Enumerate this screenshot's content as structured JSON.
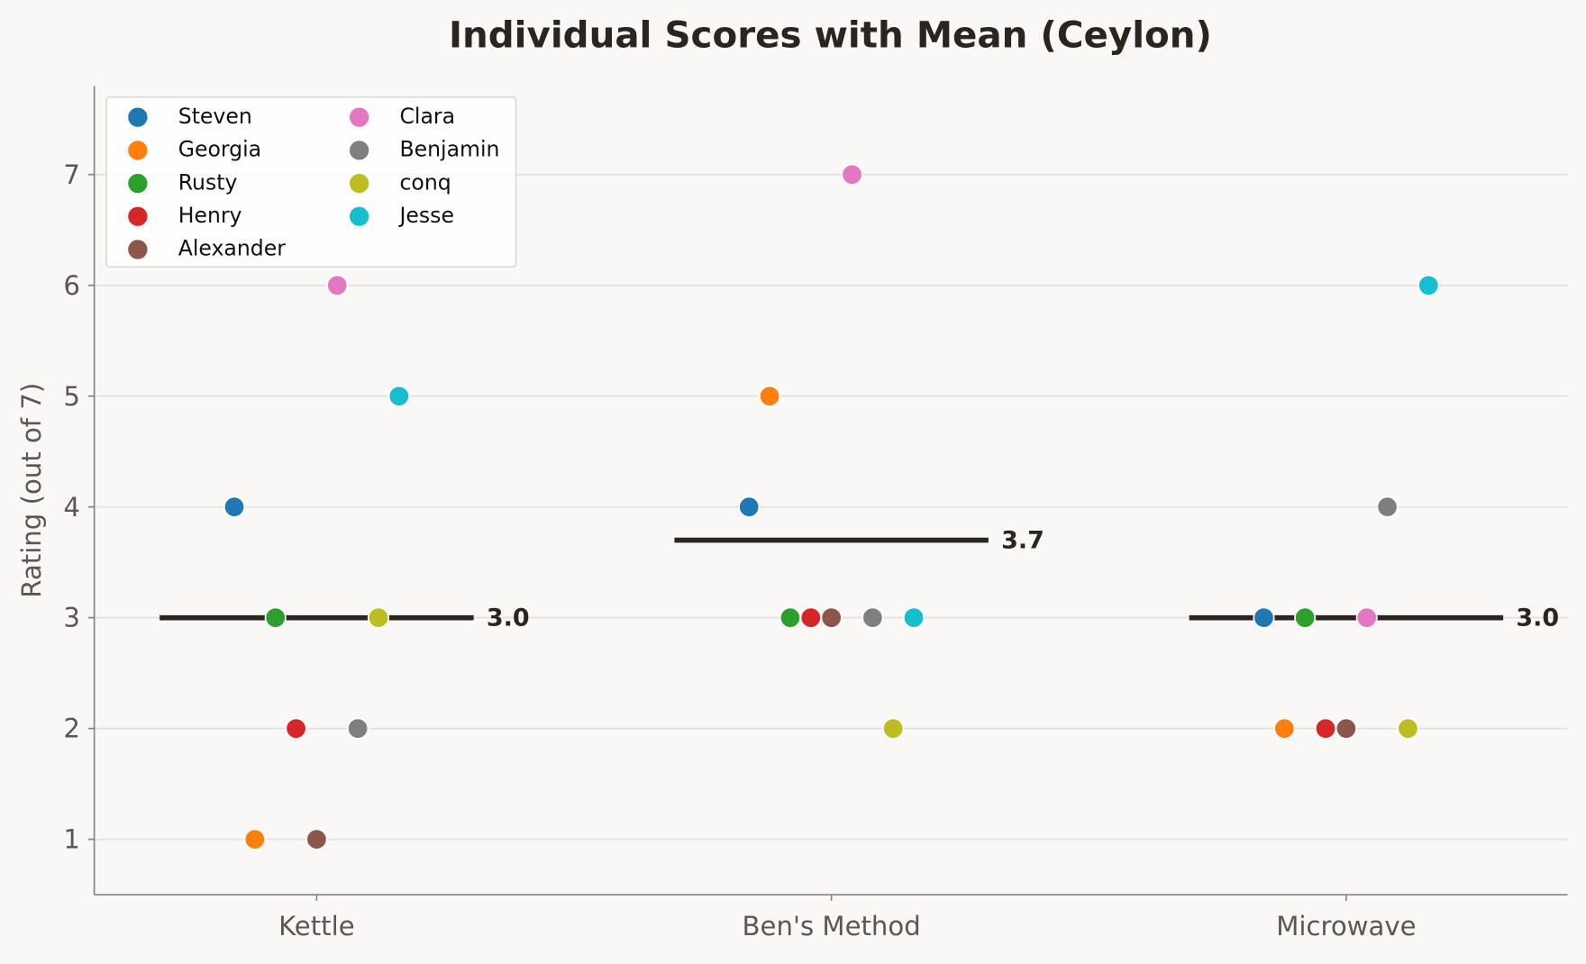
{
  "chart_data": {
    "type": "scatter",
    "title": "Individual Scores with Mean (Ceylon)",
    "xlabel": "",
    "ylabel": "Rating (out of 7)",
    "categories": [
      "Kettle",
      "Ben's Method",
      "Microwave"
    ],
    "ylim": [
      0.5,
      7.8
    ],
    "yticks": [
      1,
      2,
      3,
      4,
      5,
      6,
      7
    ],
    "grid": "horizontal",
    "legend_placement": "top-left",
    "series": [
      {
        "name": "Steven",
        "color": "#1f77b4",
        "values": [
          4,
          4,
          3
        ]
      },
      {
        "name": "Georgia",
        "color": "#ff7f0e",
        "values": [
          1,
          5,
          2
        ]
      },
      {
        "name": "Rusty",
        "color": "#2ca02c",
        "values": [
          3,
          3,
          3
        ]
      },
      {
        "name": "Henry",
        "color": "#d62728",
        "values": [
          2,
          3,
          2
        ]
      },
      {
        "name": "Alexander",
        "color": "#8c564b",
        "values": [
          1,
          3,
          2
        ]
      },
      {
        "name": "Clara",
        "color": "#e377c2",
        "values": [
          6,
          7,
          3
        ]
      },
      {
        "name": "Benjamin",
        "color": "#7f7f7f",
        "values": [
          2,
          3,
          4
        ]
      },
      {
        "name": "conq",
        "color": "#bcbd22",
        "values": [
          3,
          2,
          2
        ]
      },
      {
        "name": "Jesse",
        "color": "#17becf",
        "values": [
          5,
          3,
          6
        ]
      }
    ],
    "means": [
      3.0,
      3.7,
      3.0
    ],
    "mean_labels": [
      "3.0",
      "3.7",
      "3.0"
    ]
  }
}
